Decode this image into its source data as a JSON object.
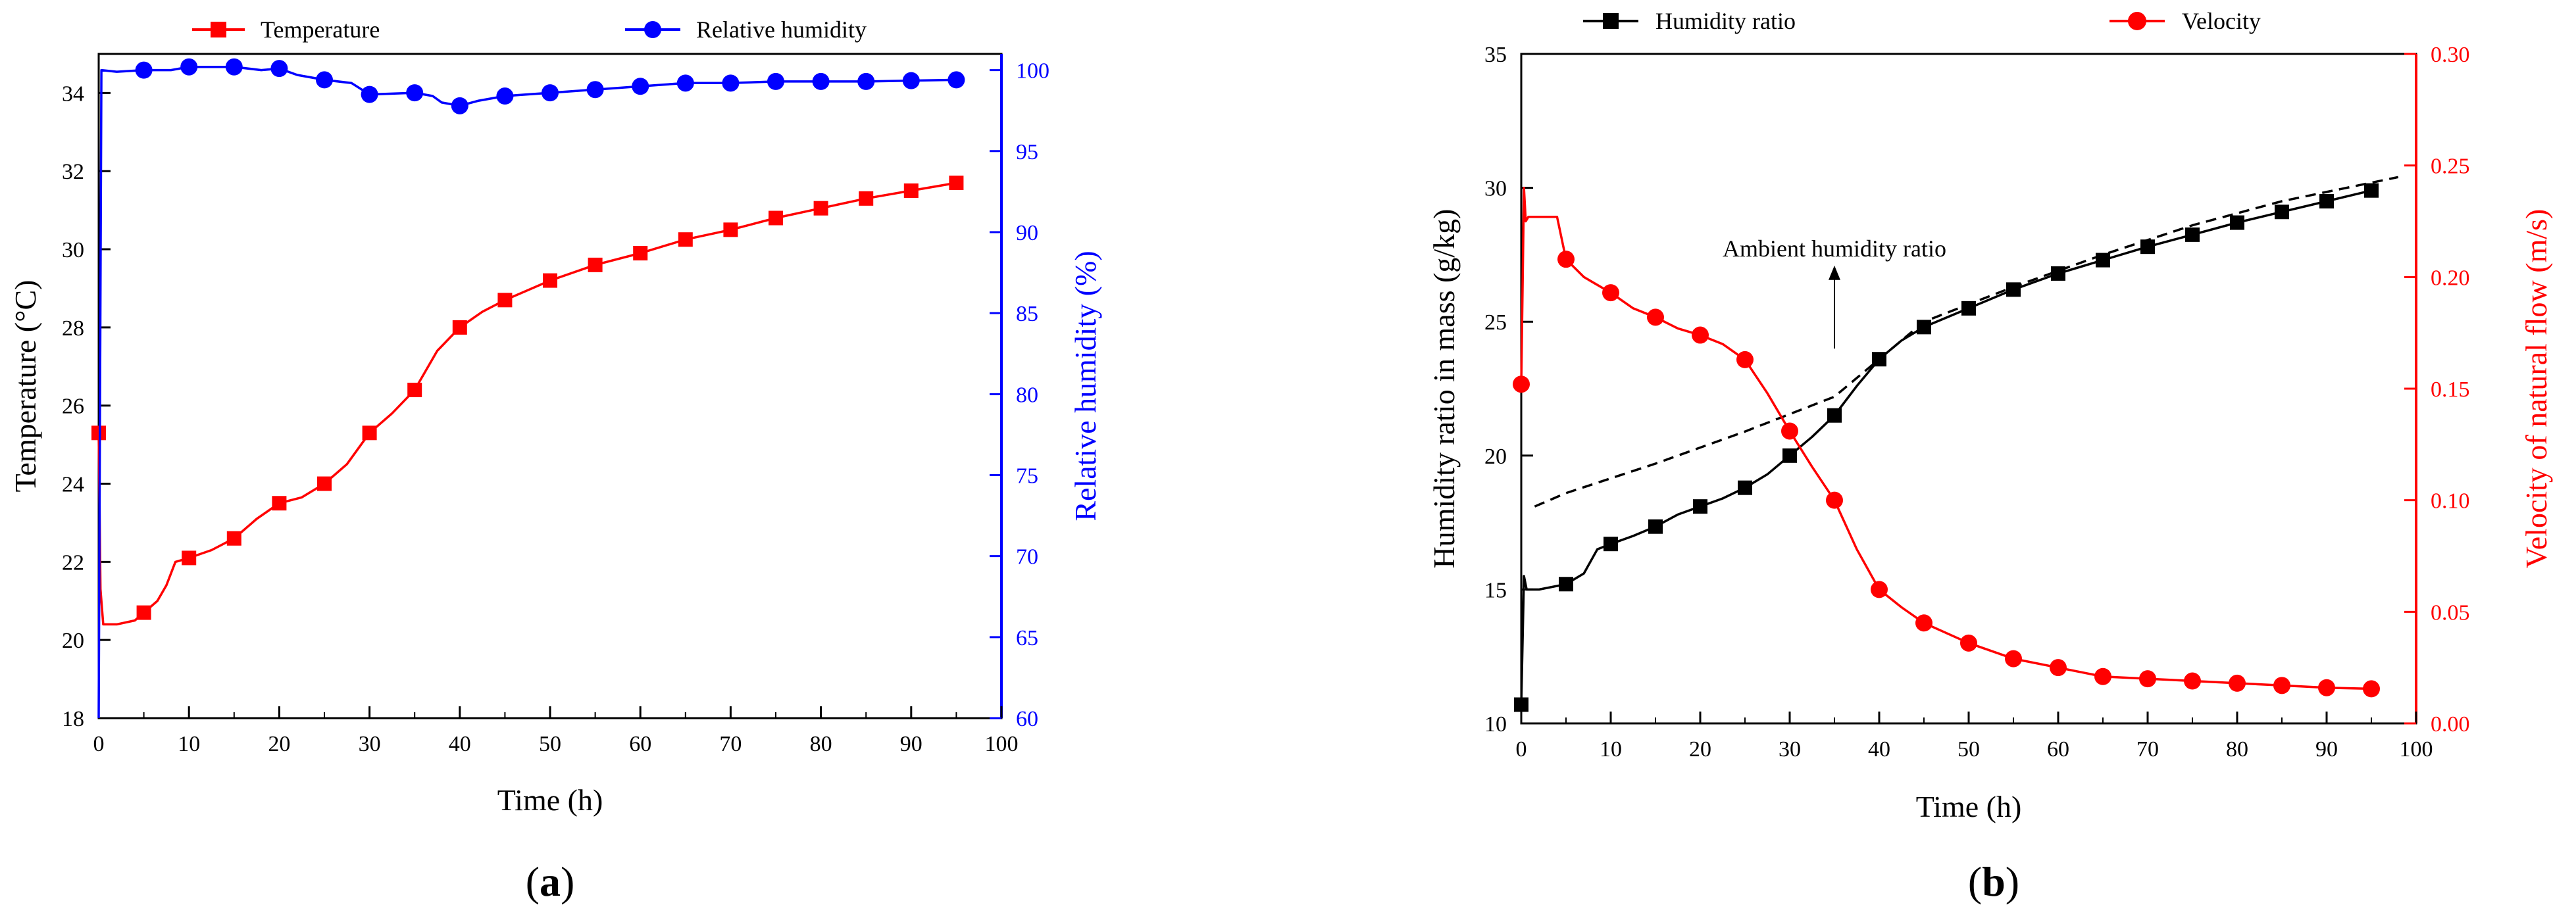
{
  "chart_data": [
    {
      "type": "line",
      "panel": "(a)",
      "panel_letter": "a",
      "xlabel": "Time (h)",
      "xlim": [
        0,
        100
      ],
      "xticks": [
        0,
        10,
        20,
        30,
        40,
        50,
        60,
        70,
        80,
        90,
        100
      ],
      "ylabel_left": "Temperature (°C)",
      "ylim_left": [
        18,
        35
      ],
      "yticks_left": [
        18,
        20,
        22,
        24,
        26,
        28,
        30,
        32,
        34
      ],
      "ylabel_right": "Relative humidity (%)",
      "ylim_right": [
        60,
        101
      ],
      "yticks_right": [
        60,
        65,
        70,
        75,
        80,
        85,
        90,
        95,
        100
      ],
      "grid": false,
      "colors": {
        "left_axis": "#000000",
        "right_axis": "#0000ff"
      },
      "series": [
        {
          "name": "Temperature",
          "axis": "left",
          "color": "#ff0000",
          "marker": "square",
          "curve": [
            [
              0,
              25.3
            ],
            [
              0.2,
              21.3
            ],
            [
              0.5,
              20.4
            ],
            [
              2,
              20.4
            ],
            [
              4,
              20.5
            ],
            [
              5,
              20.7
            ],
            [
              6.5,
              21.0
            ],
            [
              7.5,
              21.4
            ],
            [
              8.5,
              22.0
            ],
            [
              10,
              22.1
            ],
            [
              12.5,
              22.3
            ],
            [
              15,
              22.6
            ],
            [
              17.5,
              23.1
            ],
            [
              20,
              23.5
            ],
            [
              22.5,
              23.65
            ],
            [
              25,
              24.0
            ],
            [
              27.5,
              24.5
            ],
            [
              30,
              25.3
            ],
            [
              32.5,
              25.8
            ],
            [
              35,
              26.4
            ],
            [
              37.5,
              27.4
            ],
            [
              40,
              28.0
            ],
            [
              42.5,
              28.4
            ],
            [
              45,
              28.7
            ],
            [
              50,
              29.2
            ],
            [
              55,
              29.6
            ],
            [
              60,
              29.9
            ],
            [
              65,
              30.25
            ],
            [
              70,
              30.5
            ],
            [
              75,
              30.8
            ],
            [
              80,
              31.05
            ],
            [
              85,
              31.3
            ],
            [
              90,
              31.5
            ],
            [
              95,
              31.7
            ]
          ],
          "markers": [
            [
              0,
              25.3
            ],
            [
              5,
              20.7
            ],
            [
              10,
              22.1
            ],
            [
              15,
              22.6
            ],
            [
              20,
              23.5
            ],
            [
              25,
              24.0
            ],
            [
              30,
              25.3
            ],
            [
              35,
              26.4
            ],
            [
              40,
              28.0
            ],
            [
              45,
              28.7
            ],
            [
              50,
              29.2
            ],
            [
              55,
              29.6
            ],
            [
              60,
              29.9
            ],
            [
              65,
              30.25
            ],
            [
              70,
              30.5
            ],
            [
              75,
              30.8
            ],
            [
              80,
              31.05
            ],
            [
              85,
              31.3
            ],
            [
              90,
              31.5
            ],
            [
              95,
              31.7
            ]
          ]
        },
        {
          "name": "Relative humidity",
          "axis": "right",
          "color": "#0000ff",
          "marker": "circle",
          "curve": [
            [
              0,
              60
            ],
            [
              0.3,
              100
            ],
            [
              2,
              99.9
            ],
            [
              5,
              100
            ],
            [
              8,
              100
            ],
            [
              10,
              100.2
            ],
            [
              15,
              100.2
            ],
            [
              18,
              100
            ],
            [
              20,
              100.1
            ],
            [
              22,
              99.7
            ],
            [
              25,
              99.4
            ],
            [
              28,
              99.2
            ],
            [
              30,
              98.5
            ],
            [
              35,
              98.6
            ],
            [
              37,
              98.4
            ],
            [
              38,
              98.0
            ],
            [
              40,
              97.8
            ],
            [
              42,
              98.1
            ],
            [
              45,
              98.4
            ],
            [
              50,
              98.6
            ],
            [
              55,
              98.8
            ],
            [
              60,
              99.0
            ],
            [
              65,
              99.2
            ],
            [
              70,
              99.2
            ],
            [
              75,
              99.3
            ],
            [
              80,
              99.3
            ],
            [
              85,
              99.3
            ],
            [
              90,
              99.35
            ],
            [
              95,
              99.4
            ]
          ],
          "markers": [
            [
              5,
              100
            ],
            [
              10,
              100.2
            ],
            [
              15,
              100.2
            ],
            [
              20,
              100.1
            ],
            [
              25,
              99.4
            ],
            [
              30,
              98.5
            ],
            [
              35,
              98.6
            ],
            [
              40,
              97.8
            ],
            [
              45,
              98.4
            ],
            [
              50,
              98.6
            ],
            [
              55,
              98.8
            ],
            [
              60,
              99.0
            ],
            [
              65,
              99.2
            ],
            [
              70,
              99.2
            ],
            [
              75,
              99.3
            ],
            [
              80,
              99.3
            ],
            [
              85,
              99.3
            ],
            [
              90,
              99.35
            ],
            [
              95,
              99.4
            ]
          ]
        }
      ]
    },
    {
      "type": "line",
      "panel": "(b)",
      "panel_letter": "b",
      "xlabel": "Time (h)",
      "xlim": [
        0,
        100
      ],
      "xticks": [
        0,
        10,
        20,
        30,
        40,
        50,
        60,
        70,
        80,
        90,
        100
      ],
      "ylabel_left": "Humidity ratio in mass (g/kg)",
      "ylim_left": [
        10,
        35
      ],
      "yticks_left": [
        10,
        15,
        20,
        25,
        30,
        35
      ],
      "ylabel_right": "Velocity of natural flow (m/s)",
      "ylim_right": [
        0,
        0.3
      ],
      "yticks_right": [
        "0.00",
        "0.05",
        "0.10",
        "0.15",
        "0.20",
        "0.25",
        "0.30"
      ],
      "grid": false,
      "colors": {
        "left_axis": "#000000",
        "right_axis": "#ff0000"
      },
      "annotation": {
        "text": "Ambient humidity ratio",
        "arrow_from": [
          35,
          24
        ],
        "arrow_to": [
          35,
          27
        ]
      },
      "series": [
        {
          "name": "Humidity ratio",
          "axis": "left",
          "color": "#000000",
          "marker": "square",
          "curve": [
            [
              0,
              10.7
            ],
            [
              0.3,
              15.5
            ],
            [
              0.6,
              15.0
            ],
            [
              2,
              15.0
            ],
            [
              5,
              15.2
            ],
            [
              7,
              15.6
            ],
            [
              8.5,
              16.5
            ],
            [
              10,
              16.7
            ],
            [
              12.5,
              17.0
            ],
            [
              15,
              17.35
            ],
            [
              17.5,
              17.8
            ],
            [
              20,
              18.1
            ],
            [
              22.5,
              18.4
            ],
            [
              25,
              18.8
            ],
            [
              27.5,
              19.3
            ],
            [
              30,
              20.0
            ],
            [
              32.5,
              20.7
            ],
            [
              35,
              21.5
            ],
            [
              37.5,
              22.6
            ],
            [
              40,
              23.6
            ],
            [
              42.5,
              24.3
            ],
            [
              45,
              24.8
            ],
            [
              50,
              25.5
            ],
            [
              55,
              26.2
            ],
            [
              60,
              26.8
            ],
            [
              65,
              27.3
            ],
            [
              70,
              27.8
            ],
            [
              75,
              28.25
            ],
            [
              80,
              28.7
            ],
            [
              85,
              29.1
            ],
            [
              90,
              29.5
            ],
            [
              95,
              29.9
            ]
          ],
          "markers": [
            [
              0,
              10.7
            ],
            [
              5,
              15.2
            ],
            [
              10,
              16.7
            ],
            [
              15,
              17.35
            ],
            [
              20,
              18.1
            ],
            [
              25,
              18.8
            ],
            [
              30,
              20.0
            ],
            [
              35,
              21.5
            ],
            [
              40,
              23.6
            ],
            [
              45,
              24.8
            ],
            [
              50,
              25.5
            ],
            [
              55,
              26.2
            ],
            [
              60,
              26.8
            ],
            [
              65,
              27.3
            ],
            [
              70,
              27.8
            ],
            [
              75,
              28.25
            ],
            [
              80,
              28.7
            ],
            [
              85,
              29.1
            ],
            [
              90,
              29.5
            ],
            [
              95,
              29.9
            ]
          ]
        },
        {
          "name": "Ambient humidity ratio",
          "axis": "left",
          "color": "#000000",
          "style": "dashed",
          "curve": [
            [
              1.5,
              18.1
            ],
            [
              5,
              18.6
            ],
            [
              15,
              19.7
            ],
            [
              25,
              20.9
            ],
            [
              35,
              22.2
            ],
            [
              45,
              25.0
            ],
            [
              55,
              26.3
            ],
            [
              65,
              27.5
            ],
            [
              75,
              28.6
            ],
            [
              85,
              29.5
            ],
            [
              98,
              30.4
            ]
          ]
        },
        {
          "name": "Velocity",
          "axis": "right",
          "color": "#ff0000",
          "marker": "circle",
          "curve": [
            [
              0,
              0.152
            ],
            [
              0.3,
              0.24
            ],
            [
              0.5,
              0.225
            ],
            [
              0.8,
              0.227
            ],
            [
              2,
              0.227
            ],
            [
              4,
              0.227
            ],
            [
              5,
              0.208
            ],
            [
              7,
              0.2
            ],
            [
              10,
              0.193
            ],
            [
              12.5,
              0.186
            ],
            [
              15,
              0.182
            ],
            [
              17.5,
              0.177
            ],
            [
              20,
              0.174
            ],
            [
              22.5,
              0.17
            ],
            [
              25,
              0.163
            ],
            [
              27.5,
              0.148
            ],
            [
              30,
              0.131
            ],
            [
              32.5,
              0.115
            ],
            [
              35,
              0.1
            ],
            [
              37.5,
              0.078
            ],
            [
              40,
              0.06
            ],
            [
              42.5,
              0.052
            ],
            [
              45,
              0.045
            ],
            [
              50,
              0.036
            ],
            [
              55,
              0.029
            ],
            [
              60,
              0.025
            ],
            [
              65,
              0.021
            ],
            [
              70,
              0.02
            ],
            [
              75,
              0.019
            ],
            [
              80,
              0.018
            ],
            [
              85,
              0.017
            ],
            [
              90,
              0.016
            ],
            [
              95,
              0.0155
            ]
          ],
          "markers": [
            [
              0,
              0.152
            ],
            [
              5,
              0.208
            ],
            [
              10,
              0.193
            ],
            [
              15,
              0.182
            ],
            [
              20,
              0.174
            ],
            [
              25,
              0.163
            ],
            [
              30,
              0.131
            ],
            [
              35,
              0.1
            ],
            [
              40,
              0.06
            ],
            [
              45,
              0.045
            ],
            [
              50,
              0.036
            ],
            [
              55,
              0.029
            ],
            [
              60,
              0.025
            ],
            [
              65,
              0.021
            ],
            [
              70,
              0.02
            ],
            [
              75,
              0.019
            ],
            [
              80,
              0.018
            ],
            [
              85,
              0.017
            ],
            [
              90,
              0.016
            ],
            [
              95,
              0.0155
            ]
          ]
        }
      ]
    }
  ]
}
